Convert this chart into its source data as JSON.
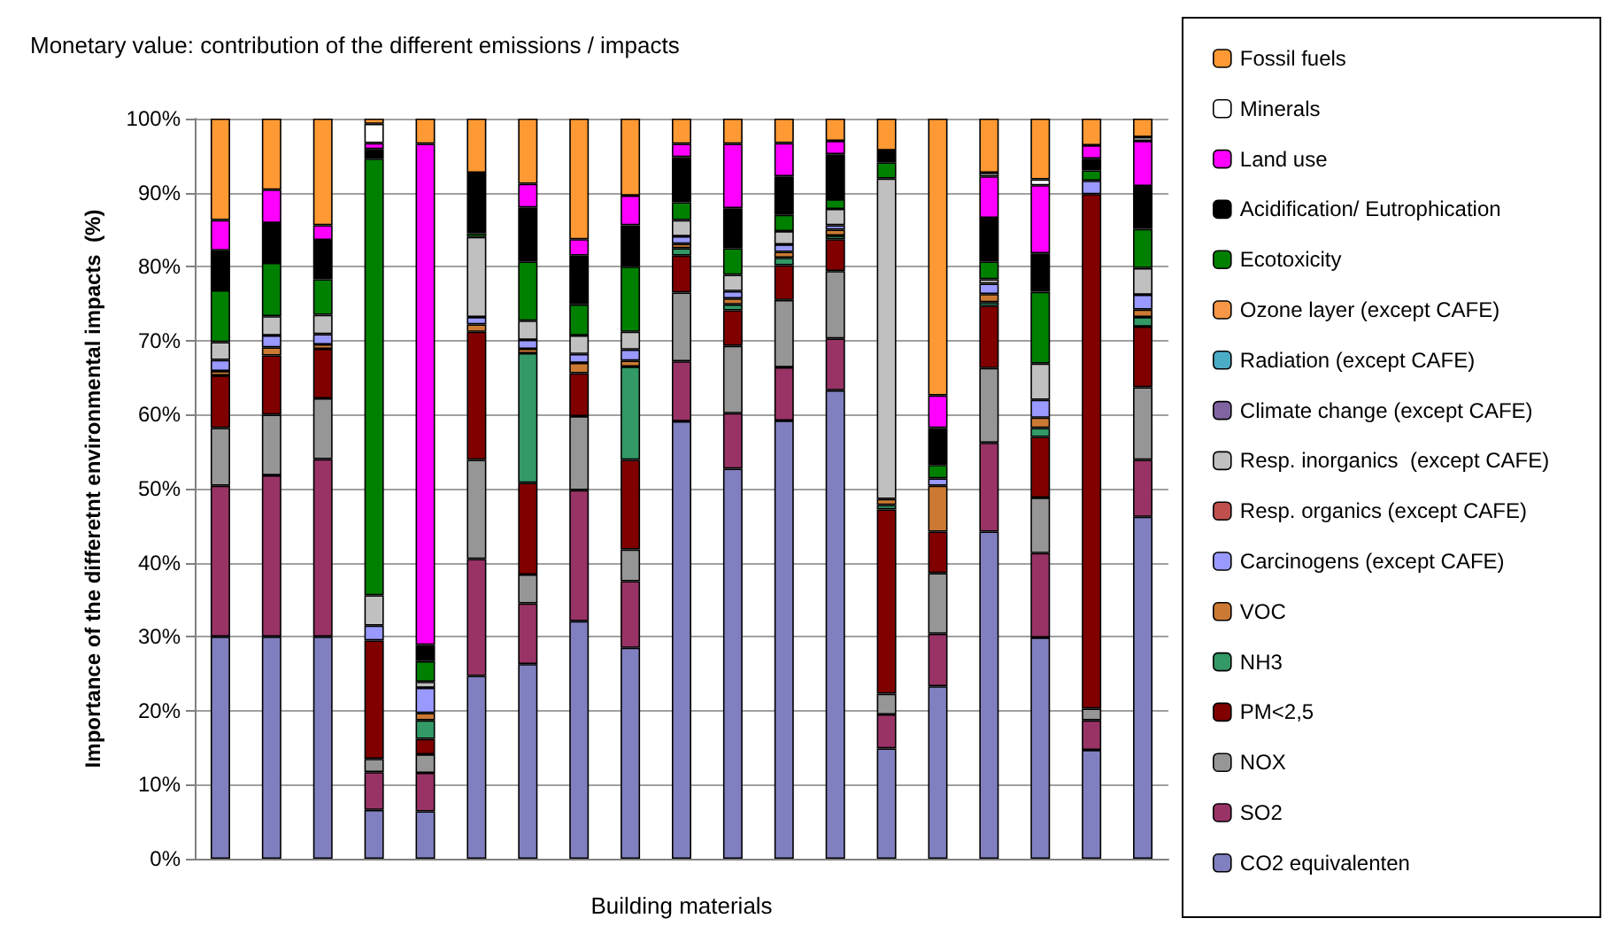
{
  "chart_data": {
    "type": "bar",
    "stacked": true,
    "title": "Monetary value: contribution of the different emissions / impacts",
    "xlabel": "Building materials",
    "ylabel": "Importance of the differetnt environmental impacts  (%)",
    "categories": [
      null,
      null,
      null,
      null,
      null,
      null,
      null,
      null,
      null,
      null,
      null,
      null,
      null,
      null,
      null,
      null,
      null,
      null,
      null
    ],
    "ylim": [
      0,
      100
    ],
    "yticks": [
      {
        "value": 0,
        "label": "0%"
      },
      {
        "value": 10,
        "label": "10%"
      },
      {
        "value": 20,
        "label": "20%"
      },
      {
        "value": 30,
        "label": "30%"
      },
      {
        "value": 40,
        "label": "40%"
      },
      {
        "value": 50,
        "label": "50%"
      },
      {
        "value": 60,
        "label": "60%"
      },
      {
        "value": 70,
        "label": "70%"
      },
      {
        "value": 80,
        "label": "80%"
      },
      {
        "value": 90,
        "label": "90%"
      },
      {
        "value": 100,
        "label": "100%"
      }
    ],
    "grid": "y",
    "legend": "right",
    "series": [
      {
        "name": "CO2 equivalenten",
        "color": "#8080c0",
        "values": [
          30,
          30,
          30,
          6.6,
          6.4,
          24.7,
          26.3,
          32.1,
          28.5,
          59.1,
          52.7,
          59.2,
          63.3,
          14.9,
          23.3,
          44.2,
          29.9,
          14.7,
          46.2
        ]
      },
      {
        "name": "SO2",
        "color": "#993366",
        "values": [
          20.4,
          21.8,
          24,
          5.1,
          5.2,
          15.8,
          8.2,
          17.7,
          9,
          8.1,
          7.5,
          7.2,
          7,
          4.6,
          7.1,
          12,
          11.4,
          4,
          7.7
        ]
      },
      {
        "name": "NOX",
        "color": "#969696",
        "values": [
          7.8,
          8.2,
          8.2,
          1.8,
          2.5,
          13.4,
          3.9,
          10,
          4.3,
          9.3,
          9.1,
          9.1,
          9.1,
          2.8,
          8.2,
          10.1,
          7.5,
          1.6,
          9.8
        ]
      },
      {
        "name": "PM<2,5",
        "color": "#800000",
        "values": [
          7.1,
          8,
          6.7,
          16,
          2.1,
          17.3,
          12.4,
          5.8,
          12.1,
          5,
          4.8,
          4.7,
          4.3,
          24.9,
          5.6,
          8.4,
          8.2,
          69.5,
          8.2
        ]
      },
      {
        "name": "NH3",
        "color": "#339966",
        "values": [
          0,
          0,
          0,
          0,
          2.5,
          0,
          17.5,
          0,
          12.6,
          1,
          0.8,
          1,
          0.5,
          0.6,
          0,
          0.5,
          1.2,
          0,
          1.3
        ]
      },
      {
        "name": "VOC",
        "color": "#cc7a33",
        "values": [
          0.6,
          1.1,
          0.6,
          0,
          1,
          1,
          0.6,
          1.4,
          0.8,
          0.6,
          0.8,
          0.8,
          0.8,
          0.8,
          6.2,
          1.1,
          1.4,
          0,
          1
        ]
      },
      {
        "name": "Carcinogens (except CAFE)",
        "color": "#9999ff",
        "values": [
          1.5,
          1.6,
          1.4,
          2,
          3.4,
          1,
          1.2,
          1.2,
          1.5,
          1,
          1,
          1,
          0.6,
          0,
          1,
          1.4,
          2.4,
          1.8,
          2
        ]
      },
      {
        "name": "Resp. organics (except CAFE)",
        "color": "#c0504d",
        "values": [
          0,
          0,
          0,
          0,
          0,
          0,
          0,
          0,
          0,
          0,
          0,
          0,
          0,
          0,
          0,
          0,
          0,
          0,
          0
        ]
      },
      {
        "name": "Resp. inorganics  (except CAFE)",
        "color": "#c0c0c0",
        "values": [
          2.4,
          2.6,
          2.6,
          4.1,
          0.8,
          10.8,
          2.6,
          2.5,
          2.4,
          2.2,
          2.2,
          1.8,
          2.2,
          43.3,
          0,
          0.6,
          4.9,
          0,
          3.6
        ]
      },
      {
        "name": "Climate change (except CAFE)",
        "color": "#8064a2",
        "values": [
          0,
          0,
          0,
          0,
          0,
          0,
          0,
          0,
          0,
          0,
          0,
          0,
          0,
          0,
          0,
          0,
          0,
          0,
          0
        ]
      },
      {
        "name": "Radiation (except CAFE)",
        "color": "#4bacc6",
        "values": [
          0,
          0,
          0,
          0,
          0,
          0,
          0,
          0,
          0,
          0,
          0,
          0,
          0,
          0,
          0,
          0,
          0,
          0,
          0
        ]
      },
      {
        "name": "Ozone layer (except CAFE)",
        "color": "#f79646",
        "values": [
          0,
          0,
          0,
          0,
          0,
          0,
          0,
          0,
          0,
          0,
          0,
          0,
          0,
          0,
          0,
          0,
          0,
          0,
          0
        ]
      },
      {
        "name": "Ecotoxicity",
        "color": "#008000",
        "values": [
          7,
          7.2,
          4.8,
          59,
          2.8,
          0.5,
          8,
          4.2,
          8.8,
          2.4,
          3.6,
          2.2,
          1.3,
          2.2,
          1.8,
          2.4,
          9.7,
          1.4,
          5.3
        ]
      },
      {
        "name": "Acidification/ Eutrophication",
        "color": "#000000",
        "values": [
          5.4,
          5.4,
          5.3,
          1.3,
          2.2,
          8.2,
          7.3,
          6.6,
          5.6,
          6.1,
          5.4,
          5.2,
          6.1,
          1.6,
          5,
          5.9,
          5.2,
          1.6,
          5.8
        ]
      },
      {
        "name": "Land use",
        "color": "#ff00ff",
        "values": [
          4.1,
          4.5,
          2,
          0.8,
          67.7,
          0,
          3.2,
          2.2,
          4,
          1.8,
          8.7,
          4.5,
          1.8,
          0,
          4.4,
          5.6,
          9.2,
          1.8,
          6.1
        ]
      },
      {
        "name": "Minerals",
        "color": "#ffffff",
        "values": [
          0,
          0,
          0,
          2.6,
          0,
          0,
          0,
          0,
          0,
          0,
          0,
          0,
          0,
          0,
          0,
          0.5,
          0.8,
          0,
          0.5
        ]
      },
      {
        "name": "Fossil fuels",
        "color": "#ff9933",
        "values": [
          13.7,
          9.6,
          14.4,
          0.7,
          3.4,
          7.3,
          8.8,
          16.3,
          10.4,
          3.4,
          3.4,
          3.3,
          3,
          4.3,
          37.4,
          7.3,
          8.2,
          3.6,
          2.5
        ]
      }
    ]
  }
}
